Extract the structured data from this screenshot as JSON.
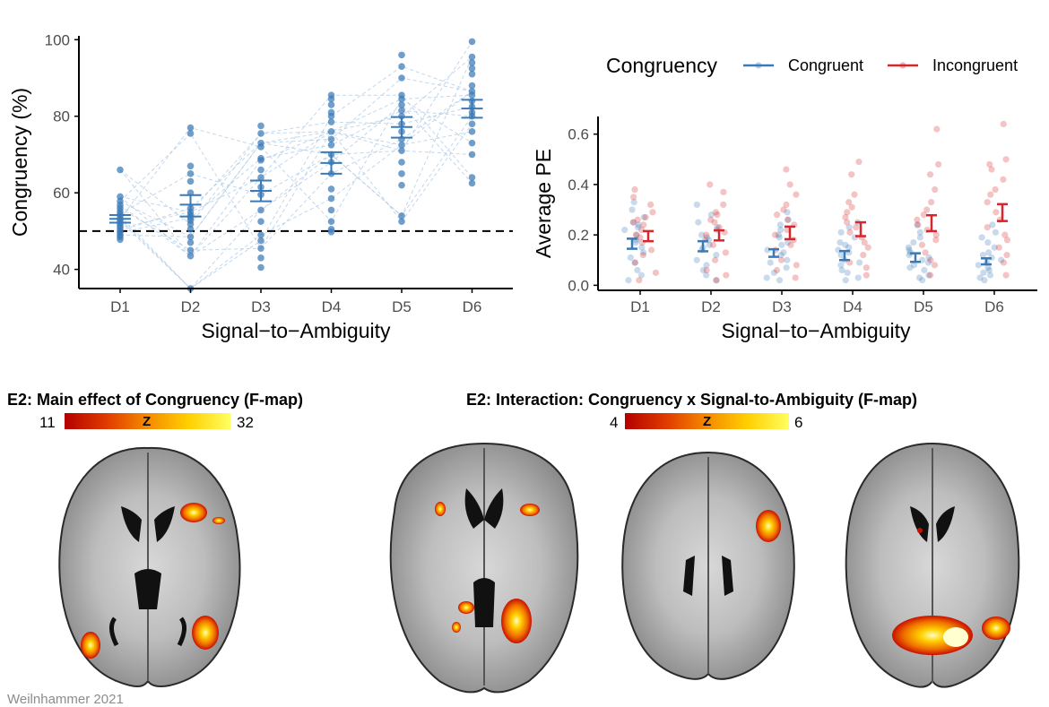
{
  "chart_data": [
    {
      "type": "scatter",
      "xlabel": "Signal−to−Ambiguity",
      "ylabel": "Congruency (%)",
      "categories": [
        "D1",
        "D2",
        "D3",
        "D4",
        "D5",
        "D6"
      ],
      "ylim": [
        35,
        101
      ],
      "yticks": [
        40,
        60,
        80,
        100
      ],
      "reference_line_y": 50,
      "color": "#3a7ab8",
      "means": [
        53.2,
        56.9,
        60.5,
        67.8,
        77.2,
        82.0
      ],
      "ci_low": [
        52.2,
        53.8,
        57.8,
        65.0,
        74.4,
        79.6
      ],
      "ci_high": [
        54.2,
        59.4,
        63.2,
        70.6,
        79.8,
        84.3
      ],
      "points": [
        [
          47.8,
          48.5,
          49.0,
          49.6,
          50.1,
          50.8,
          51.4,
          52.0,
          52.6,
          53.2,
          53.9,
          54.5,
          55.2,
          56.0,
          56.8,
          57.8,
          59.0,
          66.0
        ],
        [
          35.0,
          43.5,
          45.0,
          47.0,
          48.5,
          50.5,
          51.8,
          52.8,
          53.5,
          54.2,
          55.0,
          56.0,
          60.0,
          63.0,
          65.0,
          67.0,
          75.5,
          77.0
        ],
        [
          40.5,
          43.0,
          45.5,
          47.5,
          49.0,
          52.5,
          55.5,
          59.5,
          61.5,
          64.0,
          66.0,
          68.5,
          69.0,
          72.0,
          73.0,
          75.5,
          77.5
        ],
        [
          49.8,
          50.5,
          52.5,
          55.5,
          58.5,
          61.0,
          65.0,
          68.0,
          70.0,
          72.5,
          74.0,
          76.0,
          78.5,
          80.0,
          81.0,
          83.0,
          84.5,
          85.5
        ],
        [
          52.5,
          54.0,
          62.0,
          65.0,
          68.0,
          71.0,
          72.5,
          74.0,
          76.0,
          78.0,
          80.0,
          81.5,
          83.0,
          84.5,
          85.5,
          90.0,
          93.0,
          96.0
        ],
        [
          62.5,
          64.0,
          70.0,
          73.0,
          76.0,
          78.0,
          80.0,
          81.0,
          82.5,
          84.0,
          85.5,
          86.5,
          88.0,
          91.0,
          92.5,
          94.0,
          95.5,
          99.5
        ]
      ]
    },
    {
      "type": "scatter",
      "xlabel": "Signal−to−Ambiguity",
      "ylabel": "Average PE",
      "categories": [
        "D1",
        "D2",
        "D3",
        "D4",
        "D5",
        "D6"
      ],
      "ylim": [
        -0.02,
        0.67
      ],
      "yticks": [
        0.0,
        0.2,
        0.4,
        0.6
      ],
      "legend": {
        "title": "Congruency",
        "position": "top-right"
      },
      "series": [
        {
          "name": "Congruent",
          "color": "#3a7ab8",
          "means": [
            0.165,
            0.155,
            0.128,
            0.118,
            0.11,
            0.095
          ],
          "ci_low": [
            0.145,
            0.135,
            0.113,
            0.1,
            0.093,
            0.083
          ],
          "ci_high": [
            0.185,
            0.175,
            0.143,
            0.136,
            0.127,
            0.107
          ],
          "points": [
            [
              0.02,
              0.04,
              0.06,
              0.09,
              0.11,
              0.13,
              0.15,
              0.17,
              0.18,
              0.2,
              0.22,
              0.23,
              0.24,
              0.25,
              0.27,
              0.3,
              0.33
            ],
            [
              0.02,
              0.04,
              0.06,
              0.08,
              0.1,
              0.12,
              0.14,
              0.15,
              0.16,
              0.18,
              0.19,
              0.2,
              0.22,
              0.23,
              0.25,
              0.28,
              0.32
            ],
            [
              0.02,
              0.03,
              0.05,
              0.07,
              0.09,
              0.1,
              0.12,
              0.13,
              0.14,
              0.16,
              0.17,
              0.19,
              0.2,
              0.22,
              0.24,
              0.26,
              0.29
            ],
            [
              0.02,
              0.03,
              0.05,
              0.06,
              0.08,
              0.09,
              0.1,
              0.12,
              0.13,
              0.14,
              0.15,
              0.16,
              0.17,
              0.19,
              0.21,
              0.23,
              0.25
            ],
            [
              0.02,
              0.03,
              0.04,
              0.06,
              0.07,
              0.08,
              0.09,
              0.1,
              0.11,
              0.12,
              0.13,
              0.14,
              0.15,
              0.17,
              0.19,
              0.21,
              0.24
            ],
            [
              0.02,
              0.03,
              0.04,
              0.05,
              0.06,
              0.07,
              0.08,
              0.09,
              0.1,
              0.11,
              0.12,
              0.13,
              0.15,
              0.17,
              0.19,
              0.21,
              0.24
            ]
          ]
        },
        {
          "name": "Incongruent",
          "color": "#d7262c",
          "means": [
            0.195,
            0.198,
            0.208,
            0.222,
            0.245,
            0.29
          ],
          "ci_low": [
            0.175,
            0.178,
            0.183,
            0.195,
            0.215,
            0.255
          ],
          "ci_high": [
            0.215,
            0.218,
            0.233,
            0.25,
            0.278,
            0.322
          ],
          "points": [
            [
              0.02,
              0.05,
              0.09,
              0.12,
              0.14,
              0.17,
              0.19,
              0.2,
              0.22,
              0.24,
              0.25,
              0.26,
              0.27,
              0.29,
              0.32,
              0.35,
              0.38
            ],
            [
              0.02,
              0.04,
              0.06,
              0.1,
              0.13,
              0.16,
              0.18,
              0.2,
              0.21,
              0.23,
              0.25,
              0.26,
              0.28,
              0.29,
              0.32,
              0.37,
              0.4
            ],
            [
              0.03,
              0.06,
              0.08,
              0.1,
              0.14,
              0.16,
              0.18,
              0.2,
              0.22,
              0.24,
              0.26,
              0.28,
              0.3,
              0.32,
              0.36,
              0.4,
              0.46
            ],
            [
              0.04,
              0.07,
              0.09,
              0.12,
              0.15,
              0.17,
              0.19,
              0.21,
              0.23,
              0.25,
              0.27,
              0.29,
              0.31,
              0.33,
              0.36,
              0.44,
              0.49
            ],
            [
              0.04,
              0.08,
              0.1,
              0.13,
              0.16,
              0.18,
              0.2,
              0.22,
              0.24,
              0.26,
              0.28,
              0.3,
              0.33,
              0.38,
              0.44,
              0.48,
              0.62
            ],
            [
              0.04,
              0.09,
              0.12,
              0.15,
              0.18,
              0.2,
              0.23,
              0.26,
              0.29,
              0.33,
              0.36,
              0.38,
              0.42,
              0.46,
              0.48,
              0.5,
              0.64
            ]
          ]
        }
      ]
    }
  ],
  "brain_panels": {
    "left_title": "E2: Main effect of Congruency (F-map)",
    "left_scale_min": "11",
    "left_scale_max": "32",
    "left_scale_label": "Z",
    "right_title": "E2: Interaction: Congruency x Signal-to-Ambiguity (F-map)",
    "right_scale_min": "4",
    "right_scale_max": "6",
    "right_scale_label": "Z",
    "colormap": [
      "#b40000",
      "#e03a00",
      "#f58a00",
      "#ffd000",
      "#ffff60"
    ]
  },
  "credit": "Weilnhammer 2021"
}
